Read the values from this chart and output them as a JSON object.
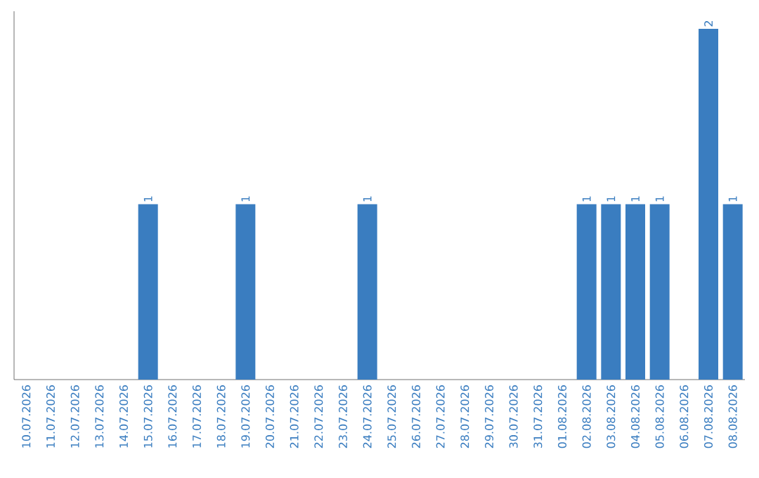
{
  "chart_data": {
    "type": "bar",
    "categories": [
      "10.07.2026",
      "11.07.2026",
      "12.07.2026",
      "13.07.2026",
      "14.07.2026",
      "15.07.2026",
      "16.07.2026",
      "17.07.2026",
      "18.07.2026",
      "19.07.2026",
      "20.07.2026",
      "21.07.2026",
      "22.07.2026",
      "23.07.2026",
      "24.07.2026",
      "25.07.2026",
      "26.07.2026",
      "27.07.2026",
      "28.07.2026",
      "29.07.2026",
      "30.07.2026",
      "31.07.2026",
      "01.08.2026",
      "02.08.2026",
      "03.08.2026",
      "04.08.2026",
      "05.08.2026",
      "06.08.2026",
      "07.08.2026",
      "08.08.2026"
    ],
    "values": [
      0,
      0,
      0,
      0,
      0,
      1,
      0,
      0,
      0,
      1,
      0,
      0,
      0,
      0,
      1,
      0,
      0,
      0,
      0,
      0,
      0,
      0,
      0,
      1,
      1,
      1,
      1,
      0,
      2,
      1
    ],
    "value_labels": [
      null,
      null,
      null,
      null,
      null,
      "1",
      null,
      null,
      null,
      "1",
      null,
      null,
      null,
      null,
      "1",
      null,
      null,
      null,
      null,
      null,
      null,
      null,
      null,
      "1",
      "1",
      "1",
      "1",
      null,
      "2",
      "1"
    ],
    "color": "#3a7dc0",
    "ylim": [
      0,
      2.1
    ],
    "tick_labels": "x"
  }
}
